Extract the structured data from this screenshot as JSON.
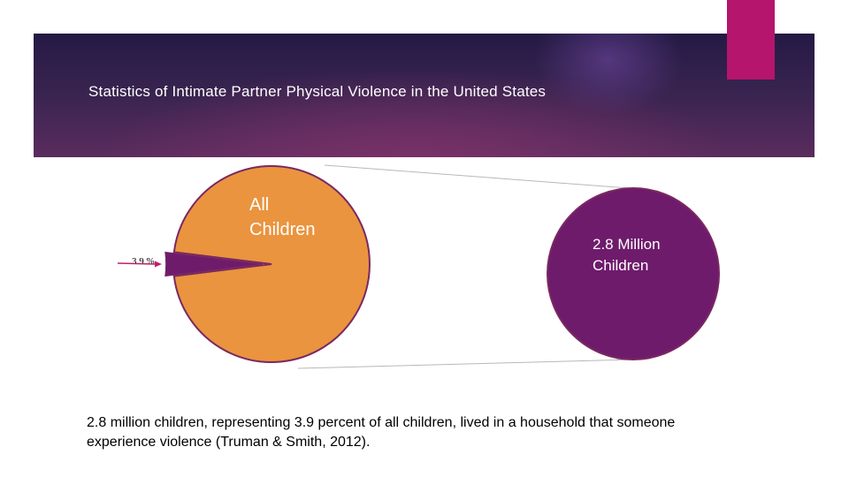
{
  "slide": {
    "title": "Statistics of  Intimate Partner Physical Violence in the United States",
    "caption": "2.8 million children, representing 3.9 percent of all children, lived in a household that someone experience violence  (Truman & Smith, 2012)."
  },
  "colors": {
    "orange": "#ea943f",
    "purple": "#6f1b6c",
    "outline": "#7a2860",
    "arrow": "#c0206a",
    "connector": "#b8b8b8",
    "accent": "#b5156c"
  },
  "chart_data": {
    "type": "pie",
    "title": "Statistics of  Intimate Partner Physical Violence in the United States",
    "slices": [
      {
        "label": "All Children",
        "value": 96.1,
        "color": "#ea943f"
      },
      {
        "label": "3.9 %",
        "value": 3.9,
        "color": "#6f1b6c"
      }
    ],
    "pie_label_lines": [
      "All",
      "Children"
    ],
    "slice_label": "3.9 %",
    "exploded_label_lines": [
      "2.8 Million",
      "Children"
    ]
  }
}
